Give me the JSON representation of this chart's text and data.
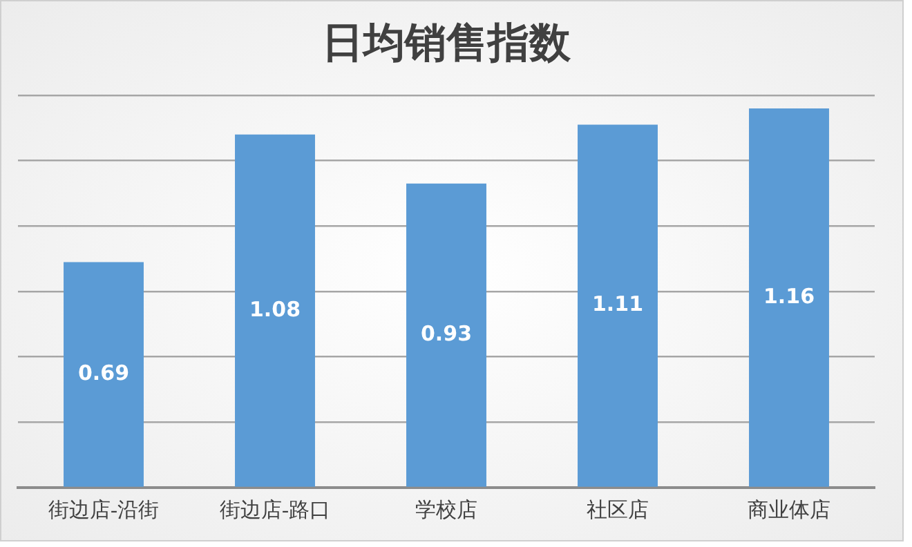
{
  "chart_data": {
    "type": "bar",
    "title": "日均销售指数",
    "categories": [
      "街边店-沿街",
      "街边店-路口",
      "学校店",
      "社区店",
      "商业体店"
    ],
    "values": [
      0.69,
      1.08,
      0.93,
      1.11,
      1.16
    ],
    "color": "#5b9bd5",
    "ylim": [
      0,
      1.2
    ],
    "yticks": [
      {
        "value": 0,
        "label": null
      },
      {
        "value": 0.2,
        "label": null
      },
      {
        "value": 0.4,
        "label": null
      },
      {
        "value": 0.6,
        "label": null
      },
      {
        "value": 0.8,
        "label": null
      },
      {
        "value": 1,
        "label": null
      },
      {
        "value": 1.2,
        "label": null
      }
    ],
    "grid": "y",
    "tick_labels": "x",
    "data_labels": true
  }
}
